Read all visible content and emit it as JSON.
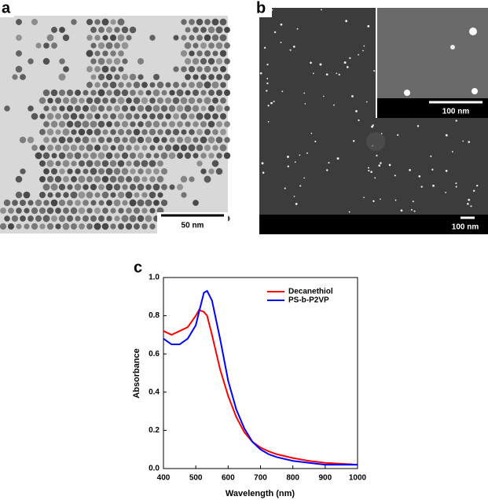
{
  "panels": {
    "a": {
      "label": "a",
      "scale_bar": "50 nm"
    },
    "b": {
      "label": "b",
      "scale_bar": "100 nm",
      "inset_scale_bar": "100 nm"
    },
    "c": {
      "label": "c"
    }
  },
  "chart_data": {
    "type": "line",
    "x_label": "Wavelength (nm)",
    "y_label": "Absorbance",
    "x": [
      400,
      425,
      450,
      475,
      500,
      510,
      525,
      535,
      550,
      575,
      600,
      625,
      650,
      675,
      700,
      725,
      750,
      800,
      850,
      900,
      950,
      1000
    ],
    "series": [
      {
        "name": "Decanethiol",
        "color": "#ff0000",
        "values": [
          0.72,
          0.7,
          0.72,
          0.74,
          0.8,
          0.83,
          0.82,
          0.8,
          0.7,
          0.52,
          0.38,
          0.27,
          0.19,
          0.14,
          0.11,
          0.09,
          0.075,
          0.055,
          0.04,
          0.03,
          0.025,
          0.02
        ]
      },
      {
        "name": "PS-b-P2VP",
        "color": "#0000ff",
        "values": [
          0.68,
          0.65,
          0.65,
          0.68,
          0.75,
          0.82,
          0.92,
          0.93,
          0.88,
          0.68,
          0.46,
          0.31,
          0.21,
          0.14,
          0.1,
          0.075,
          0.06,
          0.04,
          0.03,
          0.02,
          0.02,
          0.02
        ]
      }
    ],
    "xlim": [
      400,
      1000
    ],
    "xticks": [
      400,
      500,
      600,
      700,
      800,
      900,
      1000
    ],
    "ylim": [
      0,
      1
    ],
    "yticks": [
      {
        "value": 0,
        "label": "0.0"
      },
      0.2,
      0.4,
      0.6,
      0.8,
      {
        "value": 1,
        "label": "1.0"
      }
    ],
    "legend": "upper right"
  }
}
